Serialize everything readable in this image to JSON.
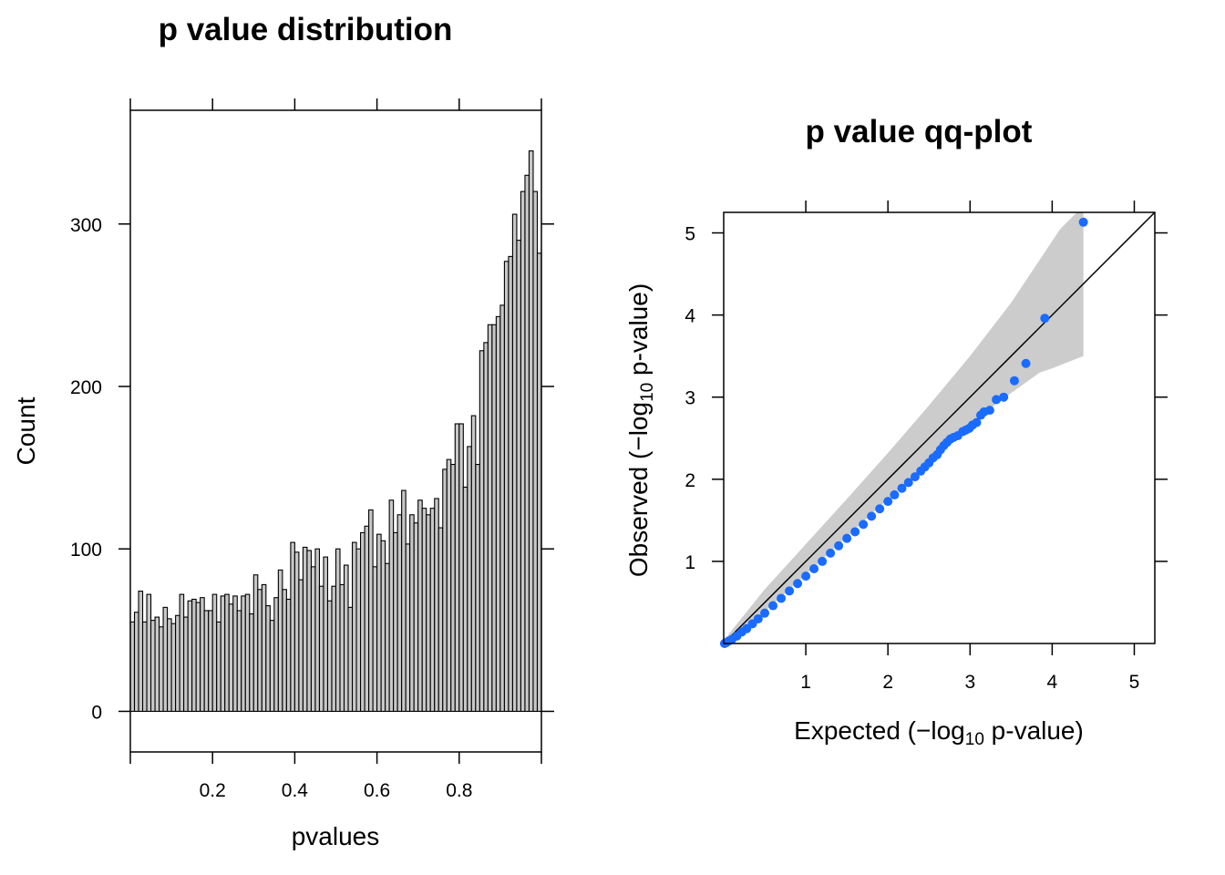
{
  "chart_data": [
    {
      "type": "bar",
      "title": "p value distribution",
      "xlabel": "pvalues",
      "ylabel": "Count",
      "xlim": [
        0,
        1
      ],
      "ylim": [
        -25,
        370
      ],
      "xticks": [
        "0.2",
        "0.4",
        "0.6",
        "0.8"
      ],
      "yticks": [
        "0",
        "100",
        "200",
        "300"
      ],
      "bar_fill": "#c8c8c8",
      "bin_width": 0.01,
      "x_start": 0.0,
      "values": [
        55,
        61,
        74,
        55,
        72,
        56,
        58,
        52,
        64,
        57,
        54,
        59,
        72,
        58,
        68,
        69,
        67,
        70,
        62,
        62,
        72,
        55,
        71,
        72,
        66,
        71,
        62,
        71,
        72,
        60,
        84,
        75,
        78,
        65,
        56,
        70,
        87,
        75,
        69,
        104,
        98,
        81,
        101,
        99,
        89,
        100,
        77,
        95,
        68,
        77,
        100,
        78,
        90,
        64,
        104,
        100,
        110,
        114,
        124,
        89,
        109,
        105,
        91,
        130,
        110,
        121,
        136,
        103,
        121,
        116,
        130,
        125,
        121,
        125,
        131,
        113,
        149,
        155,
        152,
        177,
        177,
        138,
        163,
        182,
        152,
        222,
        227,
        238,
        238,
        243,
        250,
        277,
        280,
        306,
        290,
        320,
        330,
        345,
        320,
        282
      ]
    },
    {
      "type": "scatter",
      "title": "p value qq-plot",
      "xlabel_pre": "Expected (",
      "xlabel_minus": "−",
      "xlabel_log": "log",
      "xlabel_sub": "10",
      "xlabel_post": " p-value)",
      "ylabel_pre": "Observed (",
      "ylabel_minus": "−",
      "ylabel_log": "log",
      "ylabel_sub": "10",
      "ylabel_post": " p-value)",
      "xlim": [
        0,
        5.25
      ],
      "ylim": [
        0,
        5.25
      ],
      "ticks": [
        "1",
        "2",
        "3",
        "4",
        "5"
      ],
      "point_color": "#1A6BFF",
      "band_color": "#cccccc",
      "reference_line": [
        [
          0,
          0
        ],
        [
          5.25,
          5.25
        ]
      ],
      "band_upper": [
        [
          0.05,
          0.1
        ],
        [
          0.5,
          0.66
        ],
        [
          1.0,
          1.21
        ],
        [
          1.5,
          1.76
        ],
        [
          2.0,
          2.32
        ],
        [
          2.5,
          2.9
        ],
        [
          3.0,
          3.5
        ],
        [
          3.5,
          4.15
        ],
        [
          3.9,
          4.75
        ],
        [
          4.1,
          5.05
        ],
        [
          4.3,
          5.25
        ],
        [
          4.38,
          5.25
        ]
      ],
      "band_lower": [
        [
          4.38,
          3.5
        ],
        [
          4.0,
          3.35
        ],
        [
          3.85,
          3.3
        ],
        [
          3.5,
          3.05
        ],
        [
          3.0,
          2.68
        ],
        [
          2.5,
          2.2
        ],
        [
          2.0,
          1.76
        ],
        [
          1.5,
          1.3
        ],
        [
          1.0,
          0.84
        ],
        [
          0.5,
          0.39
        ],
        [
          0.05,
          0.02
        ]
      ],
      "points": [
        [
          4.38,
          5.13
        ],
        [
          3.91,
          3.96
        ],
        [
          3.68,
          3.41
        ],
        [
          3.54,
          3.2
        ],
        [
          3.41,
          3.0
        ],
        [
          3.32,
          2.97
        ],
        [
          3.24,
          2.84
        ],
        [
          3.17,
          2.82
        ],
        [
          3.13,
          2.78
        ],
        [
          3.08,
          2.69
        ],
        [
          3.03,
          2.66
        ],
        [
          2.99,
          2.62
        ],
        [
          2.95,
          2.6
        ],
        [
          2.91,
          2.58
        ],
        [
          2.85,
          2.53
        ],
        [
          2.8,
          2.51
        ],
        [
          2.76,
          2.49
        ],
        [
          2.72,
          2.45
        ],
        [
          2.68,
          2.41
        ],
        [
          2.64,
          2.36
        ],
        [
          2.6,
          2.3
        ],
        [
          2.55,
          2.26
        ],
        [
          2.5,
          2.2
        ],
        [
          2.45,
          2.15
        ],
        [
          2.4,
          2.1
        ],
        [
          2.33,
          2.03
        ],
        [
          2.25,
          1.96
        ],
        [
          2.17,
          1.89
        ],
        [
          2.08,
          1.81
        ],
        [
          2.0,
          1.73
        ],
        [
          1.9,
          1.64
        ],
        [
          1.8,
          1.55
        ],
        [
          1.7,
          1.45
        ],
        [
          1.6,
          1.36
        ],
        [
          1.5,
          1.28
        ],
        [
          1.4,
          1.19
        ],
        [
          1.3,
          1.1
        ],
        [
          1.2,
          1.0
        ],
        [
          1.1,
          0.91
        ],
        [
          1.0,
          0.82
        ],
        [
          0.9,
          0.73
        ],
        [
          0.8,
          0.64
        ],
        [
          0.7,
          0.55
        ],
        [
          0.6,
          0.46
        ],
        [
          0.5,
          0.37
        ],
        [
          0.42,
          0.3
        ],
        [
          0.35,
          0.24
        ],
        [
          0.28,
          0.18
        ],
        [
          0.22,
          0.14
        ],
        [
          0.16,
          0.09
        ],
        [
          0.1,
          0.05
        ],
        [
          0.06,
          0.03
        ],
        [
          0.03,
          0.01
        ],
        [
          0.01,
          0.0
        ]
      ]
    }
  ]
}
